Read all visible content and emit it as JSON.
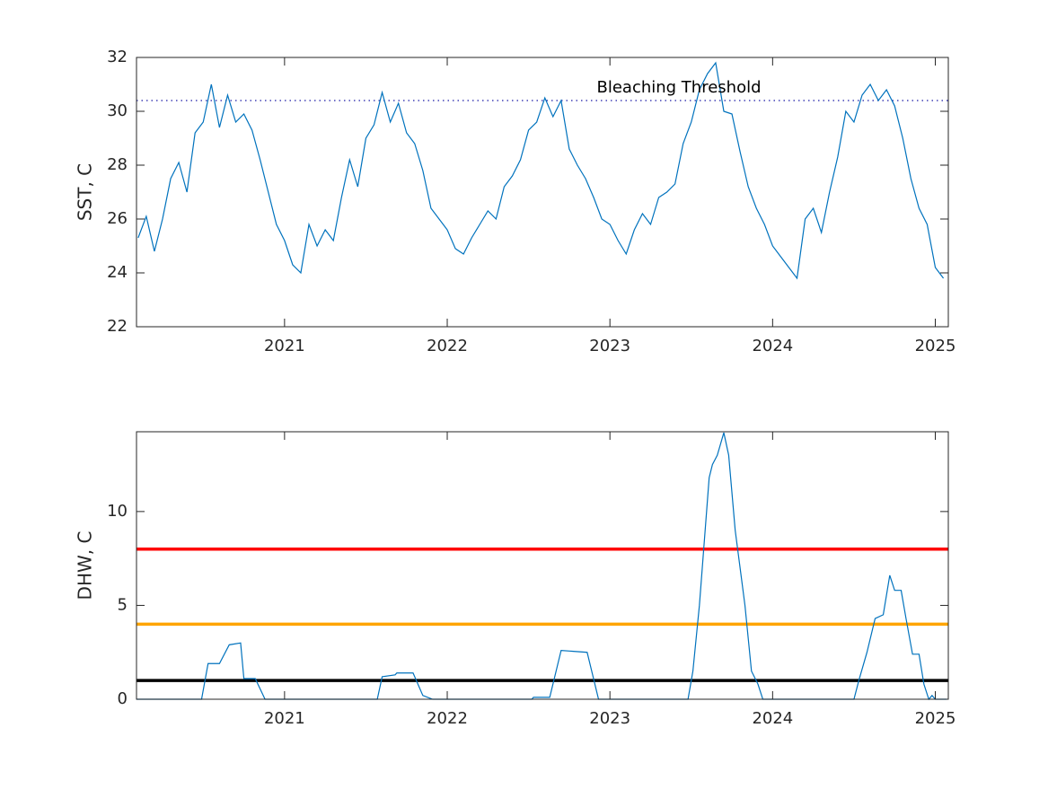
{
  "chart_data": [
    {
      "type": "line",
      "ylabel": "SST, C",
      "x": [
        2020.1,
        2020.15,
        2020.2,
        2020.25,
        2020.3,
        2020.35,
        2020.4,
        2020.45,
        2020.5,
        2020.55,
        2020.6,
        2020.65,
        2020.7,
        2020.75,
        2020.8,
        2020.85,
        2020.9,
        2020.95,
        2021.0,
        2021.05,
        2021.1,
        2021.15,
        2021.2,
        2021.25,
        2021.3,
        2021.35,
        2021.4,
        2021.45,
        2021.5,
        2021.55,
        2021.6,
        2021.65,
        2021.7,
        2021.75,
        2021.8,
        2021.85,
        2021.9,
        2021.95,
        2022.0,
        2022.05,
        2022.1,
        2022.15,
        2022.2,
        2022.25,
        2022.3,
        2022.35,
        2022.4,
        2022.45,
        2022.5,
        2022.55,
        2022.6,
        2022.65,
        2022.7,
        2022.75,
        2022.8,
        2022.85,
        2022.9,
        2022.95,
        2023.0,
        2023.05,
        2023.1,
        2023.15,
        2023.2,
        2023.25,
        2023.3,
        2023.35,
        2023.4,
        2023.45,
        2023.5,
        2023.55,
        2023.6,
        2023.65,
        2023.7,
        2023.75,
        2023.8,
        2023.85,
        2023.9,
        2023.95,
        2024.0,
        2024.05,
        2024.1,
        2024.15,
        2024.2,
        2024.25,
        2024.3,
        2024.35,
        2024.4,
        2024.45,
        2024.5,
        2024.55,
        2024.6,
        2024.65,
        2024.7,
        2024.75,
        2024.8,
        2024.85,
        2024.9,
        2024.95,
        2025.0,
        2025.05
      ],
      "series": [
        {
          "color": "#0072bd",
          "values": [
            25.3,
            26.1,
            24.8,
            26.0,
            27.5,
            28.1,
            27.0,
            29.2,
            29.6,
            31.0,
            29.4,
            30.6,
            29.6,
            29.9,
            29.3,
            28.2,
            27.0,
            25.8,
            25.2,
            24.3,
            24.0,
            25.8,
            25.0,
            25.6,
            25.2,
            26.8,
            28.2,
            27.2,
            29.0,
            29.5,
            30.7,
            29.6,
            30.3,
            29.2,
            28.8,
            27.8,
            26.4,
            26.0,
            25.6,
            24.9,
            24.7,
            25.3,
            25.8,
            26.3,
            26.0,
            27.2,
            27.6,
            28.2,
            29.3,
            29.6,
            30.5,
            29.8,
            30.4,
            28.6,
            28.0,
            27.5,
            26.8,
            26.0,
            25.8,
            25.2,
            24.7,
            25.6,
            26.2,
            25.8,
            26.8,
            27.0,
            27.3,
            28.8,
            29.6,
            30.8,
            31.4,
            31.8,
            30.0,
            29.9,
            28.5,
            27.2,
            26.4,
            25.8,
            25.0,
            24.6,
            24.2,
            23.8,
            26.0,
            26.4,
            25.5,
            27.0,
            28.3,
            30.0,
            29.6,
            30.6,
            31.0,
            30.4,
            30.8,
            30.2,
            29.0,
            27.5,
            26.4,
            25.8,
            24.2,
            23.8
          ]
        }
      ],
      "hlines": [
        {
          "value": 30.4,
          "color": "#1a1aa6",
          "style": "dotted"
        }
      ],
      "annotation": "Bleaching Threshold",
      "xlim": [
        2020.09,
        2025.08
      ],
      "xticks": [
        2021,
        2022,
        2023,
        2024,
        2025
      ],
      "ylim": [
        22,
        32
      ],
      "yticks": [
        22,
        24,
        26,
        28,
        30,
        32
      ]
    },
    {
      "type": "line",
      "ylabel": "DHW, C",
      "x": [
        2020.09,
        2020.49,
        2020.53,
        2020.6,
        2020.66,
        2020.73,
        2020.75,
        2020.82,
        2020.88,
        2021.57,
        2021.6,
        2021.68,
        2021.69,
        2021.79,
        2021.85,
        2021.91,
        2022.52,
        2022.53,
        2022.63,
        2022.7,
        2022.86,
        2022.93,
        2023.48,
        2023.51,
        2023.55,
        2023.61,
        2023.63,
        2023.66,
        2023.7,
        2023.73,
        2023.77,
        2023.83,
        2023.87,
        2023.91,
        2023.94,
        2024.5,
        2024.53,
        2024.58,
        2024.63,
        2024.68,
        2024.72,
        2024.75,
        2024.79,
        2024.82,
        2024.86,
        2024.9,
        2024.93,
        2024.96,
        2024.98,
        2025.0,
        2025.07
      ],
      "series": [
        {
          "color": "#0072bd",
          "values": [
            0,
            0,
            1.9,
            1.9,
            2.9,
            3.0,
            1.1,
            1.1,
            0,
            0,
            1.2,
            1.3,
            1.4,
            1.4,
            0.2,
            0,
            0,
            0.1,
            0.1,
            2.6,
            2.5,
            0,
            0,
            1.5,
            5,
            11.8,
            12.5,
            13.0,
            14.2,
            13.0,
            9,
            5,
            1.5,
            0.8,
            0,
            0,
            1.0,
            2.5,
            4.3,
            4.5,
            6.6,
            5.8,
            5.8,
            4.3,
            2.4,
            2.4,
            0.8,
            0,
            0.2,
            0,
            0
          ]
        }
      ],
      "hlines": [
        {
          "value": 8,
          "color": "#ff0000",
          "style": "solid"
        },
        {
          "value": 4,
          "color": "#ffa500",
          "style": "solid"
        },
        {
          "value": 1,
          "color": "#000000",
          "style": "solid"
        }
      ],
      "xlim": [
        2020.09,
        2025.08
      ],
      "xticks": [
        2021,
        2022,
        2023,
        2024,
        2025
      ],
      "ylim": [
        0,
        14.25
      ],
      "yticks": [
        0,
        5,
        10
      ]
    }
  ]
}
